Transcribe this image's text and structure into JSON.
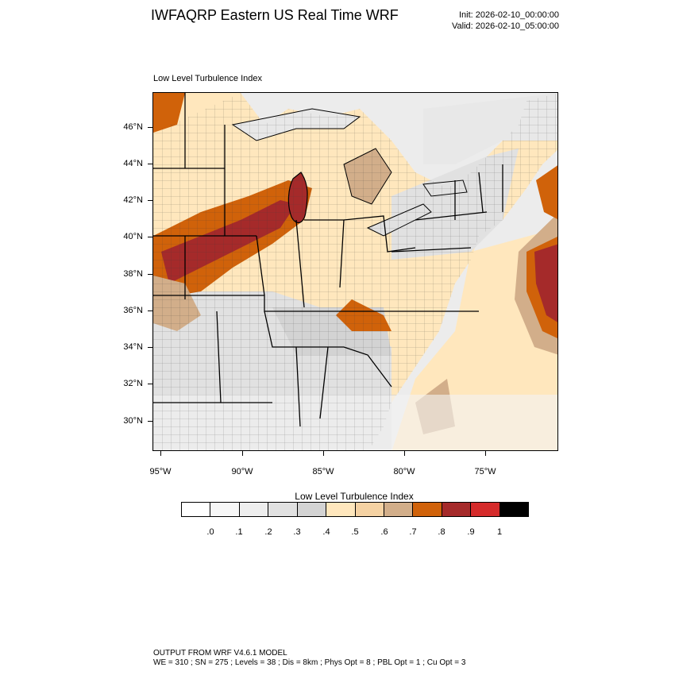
{
  "header": {
    "title": "IWFAQRP Eastern US Real Time WRF",
    "init": "Init: 2026-02-10_00:00:00",
    "valid": "Valid: 2026-02-10_05:00:00"
  },
  "map": {
    "field_label": "Low Level Turbulence Index",
    "lat_labels": [
      "46°N",
      "44°N",
      "42°N",
      "40°N",
      "38°N",
      "36°N",
      "34°N",
      "32°N",
      "30°N"
    ],
    "lon_labels": [
      "95°W",
      "90°W",
      "85°W",
      "80°W",
      "75°W"
    ]
  },
  "colorbar": {
    "title": "Low Level Turbulence Index",
    "labels": [
      ".0",
      ".1",
      ".2",
      ".3",
      ".4",
      ".5",
      ".6",
      ".7",
      ".8",
      ".9",
      "1"
    ],
    "colors": [
      "#ffffff",
      "#f7f7f7",
      "#eeeeee",
      "#e1e1e1",
      "#d3d3d3",
      "#ffe7bd",
      "#f5d2a3",
      "#d2ae8a",
      "#d0620a",
      "#a52a2a",
      "#d52b2b",
      "#000000"
    ]
  },
  "footer": {
    "line1": "OUTPUT FROM WRF V4.6.1 MODEL",
    "line2": "WE = 310 ; SN = 275 ; Levels = 38 ; Dis = 8km ; Phys Opt = 8 ; PBL Opt = 1 ; Cu Opt = 3"
  }
}
